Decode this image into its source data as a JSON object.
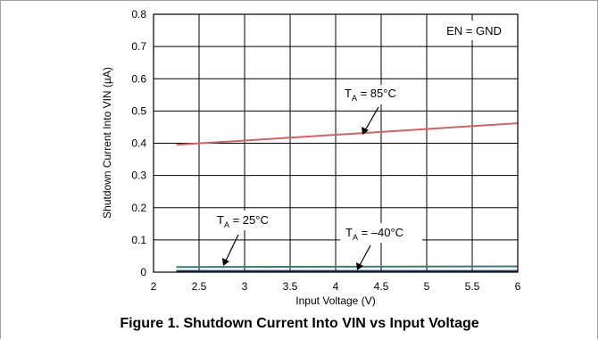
{
  "caption": "Figure 1. Shutdown Current Into VIN vs Input Voltage",
  "chart_data": {
    "type": "line",
    "title": "",
    "xlabel": "Input Voltage (V)",
    "ylabel": "Shutdown Current Into VIN (µA)",
    "xlim": [
      2,
      6
    ],
    "ylim": [
      0,
      0.8
    ],
    "x_ticks": [
      "2",
      "2.5",
      "3",
      "3.5",
      "4",
      "4.5",
      "5",
      "5.5",
      "6"
    ],
    "y_ticks": [
      "0",
      "0.1",
      "0.2",
      "0.3",
      "0.4",
      "0.5",
      "0.6",
      "0.7",
      "0.8"
    ],
    "grid": true,
    "legend_box": "EN = GND",
    "series": [
      {
        "name": "85°C",
        "color": "#cc6666",
        "x": [
          2.25,
          6.0
        ],
        "y": [
          0.395,
          0.462
        ]
      },
      {
        "name": "25°C",
        "color": "#3c7d73",
        "x": [
          2.25,
          6.0
        ],
        "y": [
          0.016,
          0.018
        ]
      },
      {
        "name": "–40°C",
        "color": "#1a3d6b",
        "x": [
          2.25,
          6.0
        ],
        "y": [
          0.003,
          0.003
        ]
      }
    ],
    "annotations": [
      {
        "prefix": "T",
        "sub": "A",
        "text": " = 85°C"
      },
      {
        "prefix": "T",
        "sub": "A",
        "text": " = 25°C"
      },
      {
        "prefix": "T",
        "sub": "A",
        "text": " = –40°C"
      }
    ]
  }
}
